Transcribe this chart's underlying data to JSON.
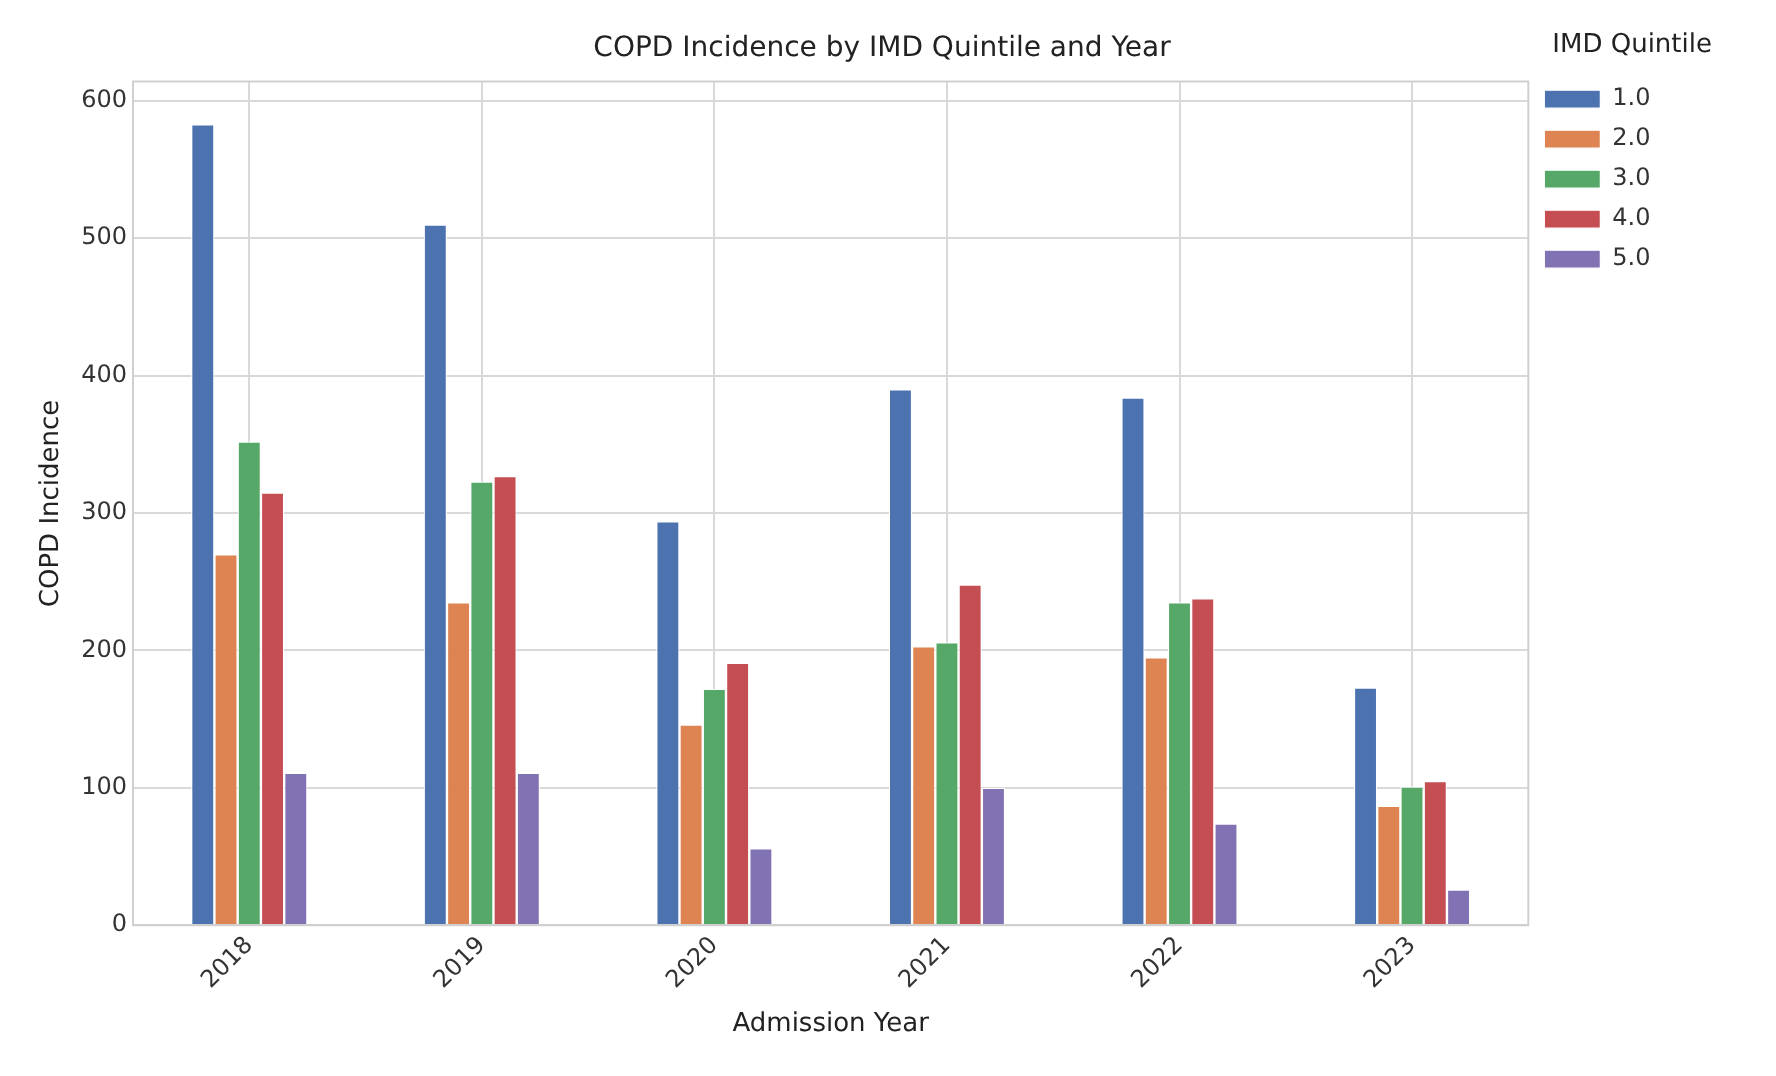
{
  "chart_data": {
    "type": "bar",
    "title": "COPD Incidence by IMD Quintile and Year",
    "xlabel": "Admission Year",
    "ylabel": "COPD Incidence",
    "legend_title": "IMD Quintile",
    "categories": [
      "2018",
      "2019",
      "2020",
      "2021",
      "2022",
      "2023"
    ],
    "series": [
      {
        "name": "1.0",
        "color": "#4c72b0",
        "values": [
          583,
          510,
          294,
          390,
          384,
          173
        ]
      },
      {
        "name": "2.0",
        "color": "#dd8452",
        "values": [
          270,
          235,
          146,
          203,
          195,
          87
        ]
      },
      {
        "name": "3.0",
        "color": "#55a868",
        "values": [
          352,
          323,
          172,
          206,
          235,
          101
        ]
      },
      {
        "name": "4.0",
        "color": "#c44e52",
        "values": [
          315,
          327,
          191,
          248,
          238,
          105
        ]
      },
      {
        "name": "5.0",
        "color": "#8172b3",
        "values": [
          111,
          111,
          56,
          100,
          74,
          26
        ]
      }
    ],
    "ylim": [
      0,
      614
    ],
    "yticks": [
      0,
      100,
      200,
      300,
      400,
      500,
      600
    ],
    "grid": true,
    "legend": "top right"
  }
}
